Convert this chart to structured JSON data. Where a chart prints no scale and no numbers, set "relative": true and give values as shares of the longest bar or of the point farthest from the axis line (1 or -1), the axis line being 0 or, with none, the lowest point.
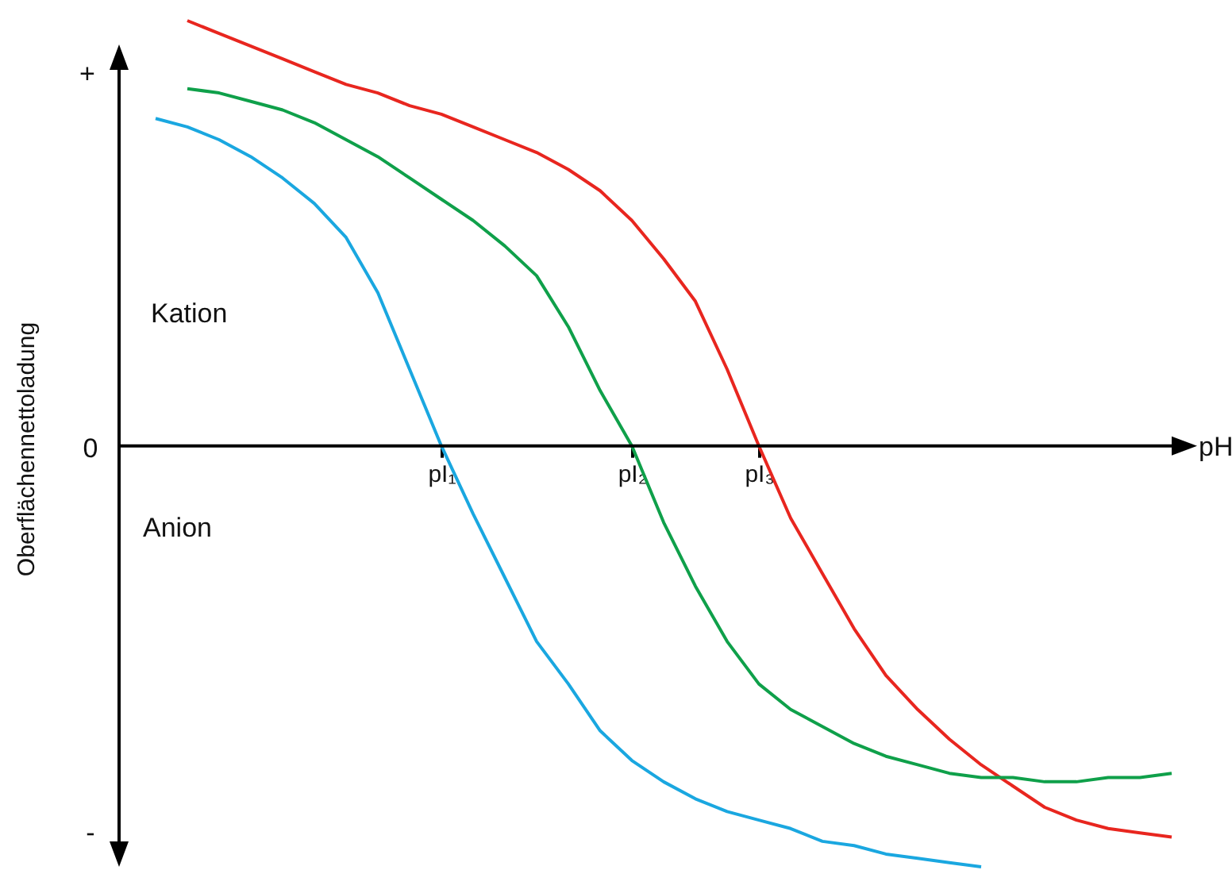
{
  "chart_data": {
    "type": "line",
    "relative": true,
    "xlabel": "pH",
    "ylabel": "Oberflächennettoladung",
    "annotations": [
      "+",
      "0",
      "-",
      "Kation",
      "Anion"
    ],
    "categories": [
      null,
      null,
      null,
      null,
      null,
      null,
      null,
      null,
      null,
      "pI₁",
      null,
      null,
      null,
      null,
      null,
      "pI₂",
      null,
      null,
      null,
      "pI₃",
      null,
      null,
      null,
      null,
      null,
      null,
      null,
      null,
      null,
      null,
      null,
      null,
      null
    ],
    "series": [
      {
        "color": "#e8261f",
        "values": [
          null,
          1.0,
          0.97,
          0.94,
          0.91,
          0.88,
          0.85,
          0.83,
          0.8,
          0.78,
          0.75,
          0.72,
          0.69,
          0.65,
          0.6,
          0.53,
          0.44,
          0.34,
          0.18,
          0,
          -0.17,
          -0.3,
          -0.43,
          -0.54,
          -0.62,
          -0.69,
          -0.75,
          -0.8,
          -0.85,
          -0.88,
          -0.9,
          -0.91,
          -0.92
        ]
      },
      {
        "color": "#0fa04a",
        "values": [
          null,
          0.84,
          0.83,
          0.81,
          0.79,
          0.76,
          0.72,
          0.68,
          0.63,
          0.58,
          0.53,
          0.47,
          0.4,
          0.28,
          0.13,
          0,
          -0.18,
          -0.33,
          -0.46,
          -0.56,
          -0.62,
          -0.66,
          -0.7,
          -0.73,
          -0.75,
          -0.77,
          -0.78,
          -0.78,
          -0.79,
          -0.79,
          -0.78,
          -0.78,
          -0.77
        ]
      },
      {
        "color": "#1aa7e0",
        "values": [
          0.77,
          0.75,
          0.72,
          0.68,
          0.63,
          0.57,
          0.49,
          0.36,
          0.18,
          0,
          -0.16,
          -0.31,
          -0.46,
          -0.56,
          -0.67,
          -0.74,
          -0.79,
          -0.83,
          -0.86,
          -0.88,
          -0.9,
          -0.93,
          -0.94,
          -0.96,
          -0.97,
          -0.98,
          -0.99,
          null,
          null,
          null,
          null,
          null,
          null
        ]
      }
    ],
    "grid": false,
    "marker": "none",
    "line_style": "solid"
  }
}
